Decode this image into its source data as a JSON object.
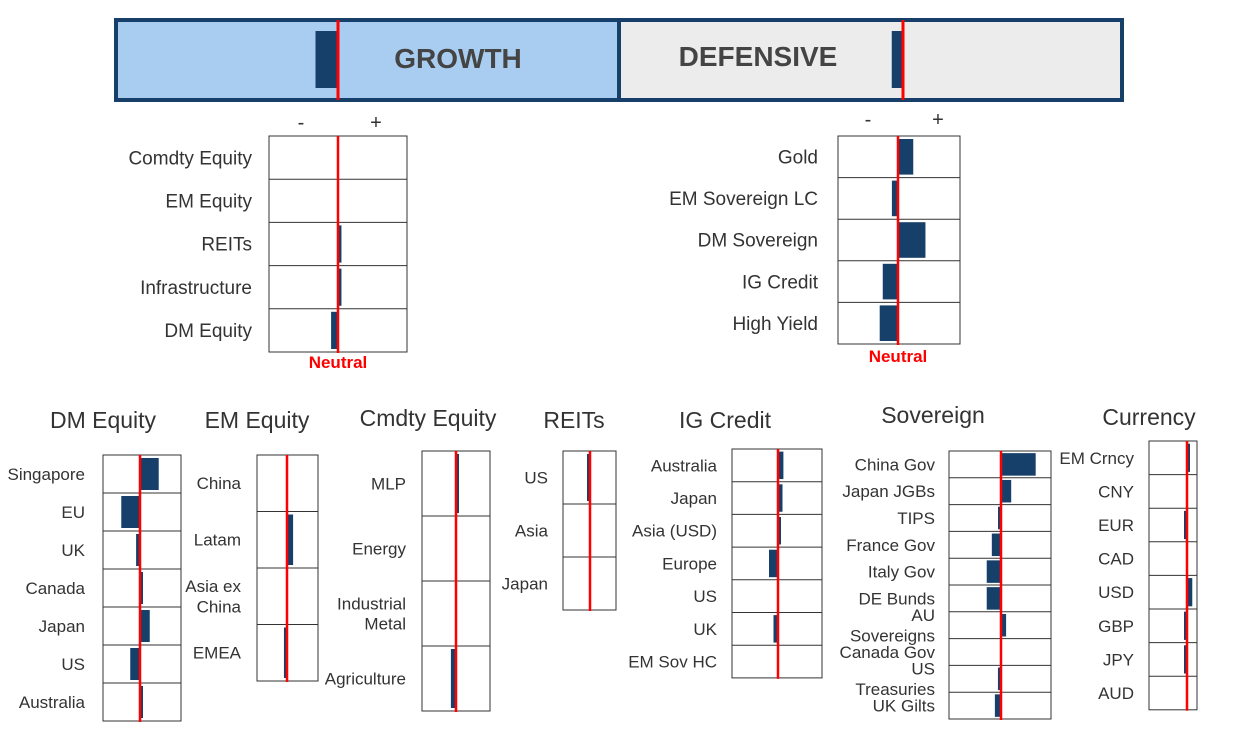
{
  "colors": {
    "bar": "#16406a",
    "neutral_line": "#ff0000",
    "growth_fill": "#a9cdf0",
    "defensive_fill": "#ececec",
    "frame": "#16406a"
  },
  "top_banner": {
    "growth_label": "GROWTH",
    "defensive_label": "DEFENSIVE",
    "growth_tilt": -0.1,
    "defensive_tilt": -0.05
  },
  "chart_data": [
    {
      "id": "growth",
      "type": "bar",
      "title": "",
      "neg_label": "-",
      "pos_label": "+",
      "neutral_label": "Neutral",
      "xlim": [
        -1,
        1
      ],
      "categories": [
        "Comdty Equity",
        "EM Equity",
        "REITs",
        "Infrastructure",
        "DM Equity"
      ],
      "values": [
        0,
        0,
        0.05,
        0.05,
        -0.1
      ]
    },
    {
      "id": "defensive",
      "type": "bar",
      "title": "",
      "neg_label": "-",
      "pos_label": "+",
      "neutral_label": "Neutral",
      "xlim": [
        -1,
        1
      ],
      "categories": [
        "Gold",
        "EM Sovereign LC",
        "DM Sovereign",
        "IG Credit",
        "High Yield"
      ],
      "values": [
        0.25,
        -0.1,
        0.45,
        -0.25,
        -0.3
      ]
    },
    {
      "id": "dm_equity",
      "type": "bar",
      "title": "DM Equity",
      "xlim": [
        -1,
        1
      ],
      "categories": [
        "Singapore",
        "EU",
        "UK",
        "Canada",
        "Japan",
        "US",
        "Australia"
      ],
      "values": [
        0.48,
        -0.48,
        -0.1,
        0.05,
        0.25,
        -0.25,
        0.05
      ]
    },
    {
      "id": "em_equity",
      "type": "bar",
      "title": "EM Equity",
      "xlim": [
        -1,
        1
      ],
      "categories": [
        "China",
        "Latam",
        "Asia ex China",
        "EMEA"
      ],
      "values": [
        0,
        0.2,
        0,
        -0.1
      ]
    },
    {
      "id": "cmdty_equity",
      "type": "bar",
      "title": "Cmdty Equity",
      "xlim": [
        -1,
        1
      ],
      "categories": [
        "MLP",
        "Energy",
        "Industrial Metal",
        "Agriculture"
      ],
      "values": [
        0.08,
        0,
        0,
        -0.15
      ]
    },
    {
      "id": "reits",
      "type": "bar",
      "title": "REITs",
      "xlim": [
        -1,
        1
      ],
      "categories": [
        "US",
        "Asia",
        "Japan"
      ],
      "values": [
        -0.1,
        0,
        0
      ]
    },
    {
      "id": "ig_credit",
      "type": "bar",
      "title": "IG Credit",
      "xlim": [
        -1,
        1
      ],
      "categories": [
        "Australia",
        "Japan",
        "Asia (USD)",
        "Europe",
        "US",
        "UK",
        "EM Sov HC"
      ],
      "values": [
        0.12,
        0.1,
        0.05,
        -0.2,
        0,
        -0.1,
        0
      ]
    },
    {
      "id": "sovereign",
      "type": "bar",
      "title": "Sovereign",
      "xlim": [
        -1,
        1
      ],
      "categories": [
        "China Gov",
        "Japan JGBs",
        "TIPS",
        "France Gov",
        "Italy Gov",
        "DE Bunds",
        "AU Sovereigns",
        "Canada Gov",
        "US Treasuries",
        "UK Gilts"
      ],
      "values": [
        0.68,
        0.2,
        -0.05,
        -0.18,
        -0.28,
        -0.28,
        0.1,
        0,
        -0.06,
        -0.12
      ]
    },
    {
      "id": "currency",
      "type": "bar",
      "title": "Currency",
      "xlim": [
        -1,
        1
      ],
      "categories": [
        "EM Crncy",
        "CNY",
        "EUR",
        "CAD",
        "USD",
        "GBP",
        "JPY",
        "AUD"
      ],
      "values": [
        0.08,
        0,
        -0.12,
        0,
        0.22,
        -0.08,
        -0.08,
        0
      ]
    }
  ]
}
